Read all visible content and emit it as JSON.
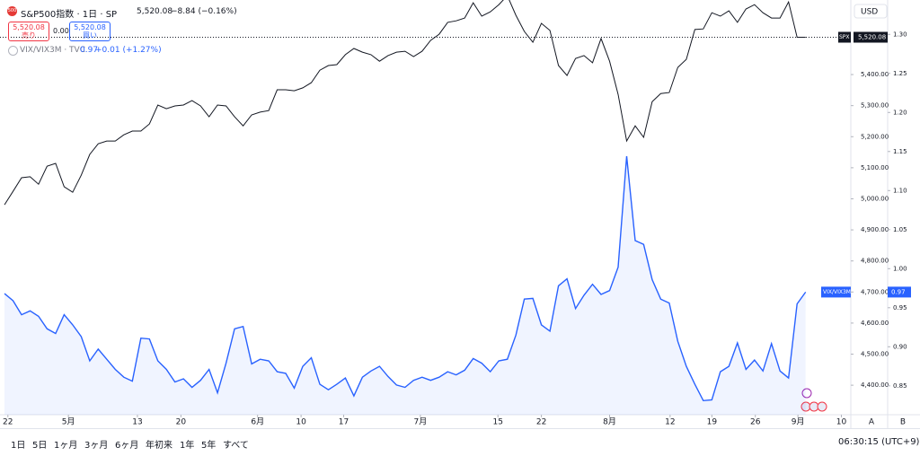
{
  "chart_data": {
    "type": "line",
    "title": "S&P500指数 · 1日 · SP",
    "symbol_icon": "500",
    "last_price": "5,520.08",
    "change": "−8.84 (−0.16%)",
    "sell_price": "5,520.08",
    "sell_label": "売り",
    "spread": "0.00",
    "buy_price": "5,520.08",
    "buy_label": "買い",
    "compare_title": "VIX/VIX3M · TVC",
    "compare_last": "0.97",
    "compare_change": "+0.01 (+1.27%)",
    "currency": "USD",
    "xlim": [
      -0.4,
      99.2
    ],
    "xticks": [
      {
        "value": 0.4,
        "label": "22"
      },
      {
        "value": 7.5,
        "label": "5月"
      },
      {
        "value": 15.6,
        "label": "13"
      },
      {
        "value": 20.7,
        "label": "20"
      },
      {
        "value": 29.7,
        "label": "6月"
      },
      {
        "value": 34.8,
        "label": "10"
      },
      {
        "value": 39.8,
        "label": "17"
      },
      {
        "value": 48.8,
        "label": "7月"
      },
      {
        "value": 57.9,
        "label": "15"
      },
      {
        "value": 63,
        "label": "22"
      },
      {
        "value": 71,
        "label": "8月"
      },
      {
        "value": 78.1,
        "label": "12"
      },
      {
        "value": 83,
        "label": "19"
      },
      {
        "value": 88.1,
        "label": "26"
      },
      {
        "value": 93.1,
        "label": "9月"
      },
      {
        "value": 98.2,
        "label": "10"
      }
    ],
    "ylim": [
      4305,
      5640
    ],
    "yticks": [
      {
        "value": 4400,
        "label": "4,400.00"
      },
      {
        "value": 4500,
        "label": "4,500.00"
      },
      {
        "value": 4600,
        "label": "4,600.00"
      },
      {
        "value": 4700,
        "label": "4,700.00"
      },
      {
        "value": 4800,
        "label": "4,800.00"
      },
      {
        "value": 4900,
        "label": "4,900.00"
      },
      {
        "value": 5000,
        "label": "5,000.00"
      },
      {
        "value": 5100,
        "label": "5,100.00"
      },
      {
        "value": 5200,
        "label": "5,200.00"
      },
      {
        "value": 5300,
        "label": "5,300.00"
      },
      {
        "value": 5400,
        "label": "5,400.00"
      }
    ],
    "y2lim": [
      0.813,
      1.344
    ],
    "y2ticks": [
      0.85,
      {
        "value": 0.9,
        "label": "0.90"
      },
      0.95,
      {
        "value": 1.0,
        "label": "1.00"
      },
      1.05,
      {
        "value": 1.1,
        "label": "1.10"
      },
      1.15,
      {
        "value": 1.2,
        "label": "1.20"
      },
      1.25,
      {
        "value": 1.3,
        "label": "1.30"
      }
    ],
    "series": [
      {
        "name": "SPX",
        "color": "#131722",
        "last_label": "5,520.08",
        "values": [
          4981,
          5024,
          5068,
          5071,
          5047,
          5105,
          5114,
          5039,
          5021,
          5076,
          5143,
          5177,
          5186,
          5186,
          5206,
          5218,
          5218,
          5241,
          5302,
          5290,
          5299,
          5302,
          5316,
          5299,
          5264,
          5302,
          5299,
          5264,
          5235,
          5270,
          5279,
          5284,
          5351,
          5351,
          5348,
          5357,
          5374,
          5414,
          5429,
          5432,
          5464,
          5484,
          5472,
          5464,
          5443,
          5461,
          5472,
          5475,
          5458,
          5475,
          5510,
          5530,
          5568,
          5573,
          5582,
          5631,
          5588,
          5602,
          5625,
          5654,
          5591,
          5539,
          5504,
          5565,
          5542,
          5429,
          5397,
          5452,
          5461,
          5438,
          5516,
          5443,
          5336,
          5186,
          5235,
          5198,
          5313,
          5339,
          5342,
          5423,
          5449,
          5545,
          5547,
          5599,
          5588,
          5605,
          5568,
          5611,
          5625,
          5599,
          5582,
          5582,
          5634,
          5520,
          5520.08
        ]
      },
      {
        "name": "VIX/VIX3M",
        "color": "#2962ff",
        "axis": "y2",
        "last_label": "0.97",
        "values": [
          0.968,
          0.959,
          0.941,
          0.946,
          0.939,
          0.923,
          0.917,
          0.941,
          0.928,
          0.913,
          0.882,
          0.897,
          0.884,
          0.871,
          0.861,
          0.856,
          0.911,
          0.91,
          0.882,
          0.871,
          0.855,
          0.859,
          0.848,
          0.857,
          0.871,
          0.841,
          0.879,
          0.923,
          0.926,
          0.878,
          0.884,
          0.882,
          0.868,
          0.866,
          0.847,
          0.875,
          0.886,
          0.852,
          0.845,
          0.852,
          0.86,
          0.837,
          0.861,
          0.869,
          0.875,
          0.862,
          0.851,
          0.848,
          0.857,
          0.861,
          0.857,
          0.861,
          0.868,
          0.864,
          0.87,
          0.885,
          0.879,
          0.868,
          0.882,
          0.884,
          0.915,
          0.961,
          0.962,
          0.928,
          0.92,
          0.978,
          0.987,
          0.949,
          0.966,
          0.98,
          0.967,
          0.972,
          1.002,
          1.144,
          1.036,
          1.031,
          0.986,
          0.961,
          0.956,
          0.907,
          0.875,
          0.852,
          0.831,
          0.832,
          0.868,
          0.875,
          0.905,
          0.871,
          0.883,
          0.869,
          0.904,
          0.869,
          0.86,
          0.955,
          0.97
        ]
      }
    ],
    "pane_labels": [
      "A",
      "B"
    ],
    "toolbar": {
      "ranges": [
        "1日",
        "5日",
        "1ヶ月",
        "3ヶ月",
        "6ヶ月",
        "年初来",
        "1年",
        "5年",
        "すべて"
      ],
      "clock": "06:30:15 (UTC+9)"
    }
  }
}
